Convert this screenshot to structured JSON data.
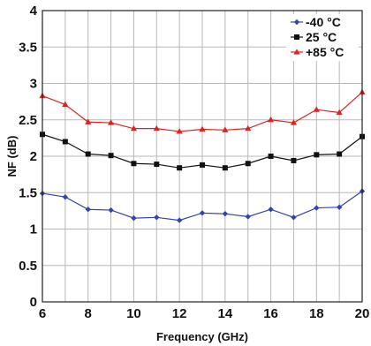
{
  "chart_data": {
    "type": "line",
    "title": "",
    "xlabel": "Frequency (GHz)",
    "ylabel": "NF (dB)",
    "xlim": [
      6,
      20
    ],
    "ylim": [
      0,
      4
    ],
    "grid": true,
    "legend_position": "top-right",
    "x_ticks": [
      "6",
      "8",
      "10",
      "12",
      "14",
      "16",
      "18",
      "20"
    ],
    "y_ticks": [
      "0",
      "0.5",
      "1",
      "1.5",
      "2",
      "2.5",
      "3",
      "3.5",
      "4"
    ],
    "x": [
      6,
      7,
      8,
      9,
      10,
      11,
      12,
      13,
      14,
      15,
      16,
      17,
      18,
      19,
      20
    ],
    "series": [
      {
        "name": "-40 °C",
        "color": "#3344aa",
        "marker": "diamond",
        "values": [
          1.49,
          1.44,
          1.27,
          1.26,
          1.15,
          1.16,
          1.12,
          1.22,
          1.21,
          1.17,
          1.27,
          1.16,
          1.29,
          1.3,
          1.52
        ]
      },
      {
        "name": "25 °C",
        "color": "#111111",
        "marker": "square",
        "values": [
          2.3,
          2.2,
          2.03,
          2.01,
          1.9,
          1.89,
          1.84,
          1.88,
          1.84,
          1.9,
          2.0,
          1.94,
          2.02,
          2.03,
          2.27
        ]
      },
      {
        "name": "+85 °C",
        "color": "#dd2222",
        "marker": "triangle",
        "values": [
          2.83,
          2.71,
          2.47,
          2.46,
          2.38,
          2.38,
          2.34,
          2.37,
          2.36,
          2.38,
          2.5,
          2.46,
          2.64,
          2.6,
          2.88
        ]
      }
    ]
  }
}
